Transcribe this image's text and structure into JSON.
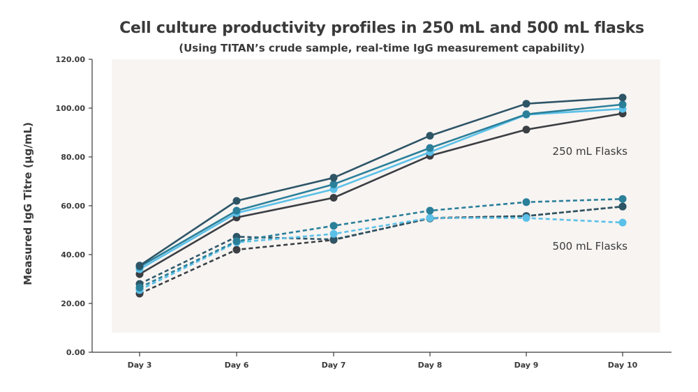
{
  "chart_data": {
    "type": "line",
    "title": "Cell culture productivity profiles in 250 mL and 500 mL flasks",
    "subtitle": "(Using TITAN’s crude sample, real-time IgG measurement capability)",
    "xlabel": "",
    "ylabel": "Measured IgG Titre (µg/mL)",
    "categories": [
      "Day 3",
      "Day 6",
      "Day 7",
      "Day 8",
      "Day 9",
      "Day 10"
    ],
    "ylim": [
      0,
      120
    ],
    "yticks": [
      "0.00",
      "20.00",
      "40.00",
      "60.00",
      "80.00",
      "100.00",
      "120.00"
    ],
    "grid": false,
    "series": [
      {
        "group": "250 mL Flasks",
        "color": "#2e5566",
        "dash": false,
        "values": [
          35.5,
          62.0,
          71.5,
          88.7,
          101.8,
          104.3
        ]
      },
      {
        "group": "250 mL Flasks",
        "color": "#2a7f99",
        "dash": false,
        "values": [
          35.0,
          58.0,
          68.8,
          83.7,
          97.5,
          101.5
        ]
      },
      {
        "group": "250 mL Flasks",
        "color": "#5bc0e8",
        "dash": false,
        "values": [
          34.0,
          57.0,
          66.8,
          82.0,
          97.3,
          99.7
        ]
      },
      {
        "group": "250 mL Flasks",
        "color": "#3b3e42",
        "dash": false,
        "values": [
          32.0,
          55.2,
          63.3,
          80.5,
          91.2,
          97.8
        ]
      },
      {
        "group": "500 mL Flasks",
        "color": "#2a7f99",
        "dash": true,
        "values": [
          26.5,
          45.5,
          51.8,
          58.0,
          61.5,
          62.8
        ]
      },
      {
        "group": "500 mL Flasks",
        "color": "#5bc0e8",
        "dash": true,
        "values": [
          25.5,
          45.0,
          48.5,
          55.0,
          55.0,
          53.1
        ]
      },
      {
        "group": "500 mL Flasks",
        "color": "#2e5566",
        "dash": true,
        "values": [
          28.0,
          47.3,
          46.2,
          54.8,
          55.8,
          59.7
        ]
      },
      {
        "group": "500 mL Flasks",
        "color": "#3b3e42",
        "dash": true,
        "values": [
          24.0,
          42.0,
          46.0,
          55.0,
          55.8,
          59.7
        ]
      }
    ],
    "annotations": [
      "250 mL Flasks",
      "500 mL Flasks"
    ]
  }
}
